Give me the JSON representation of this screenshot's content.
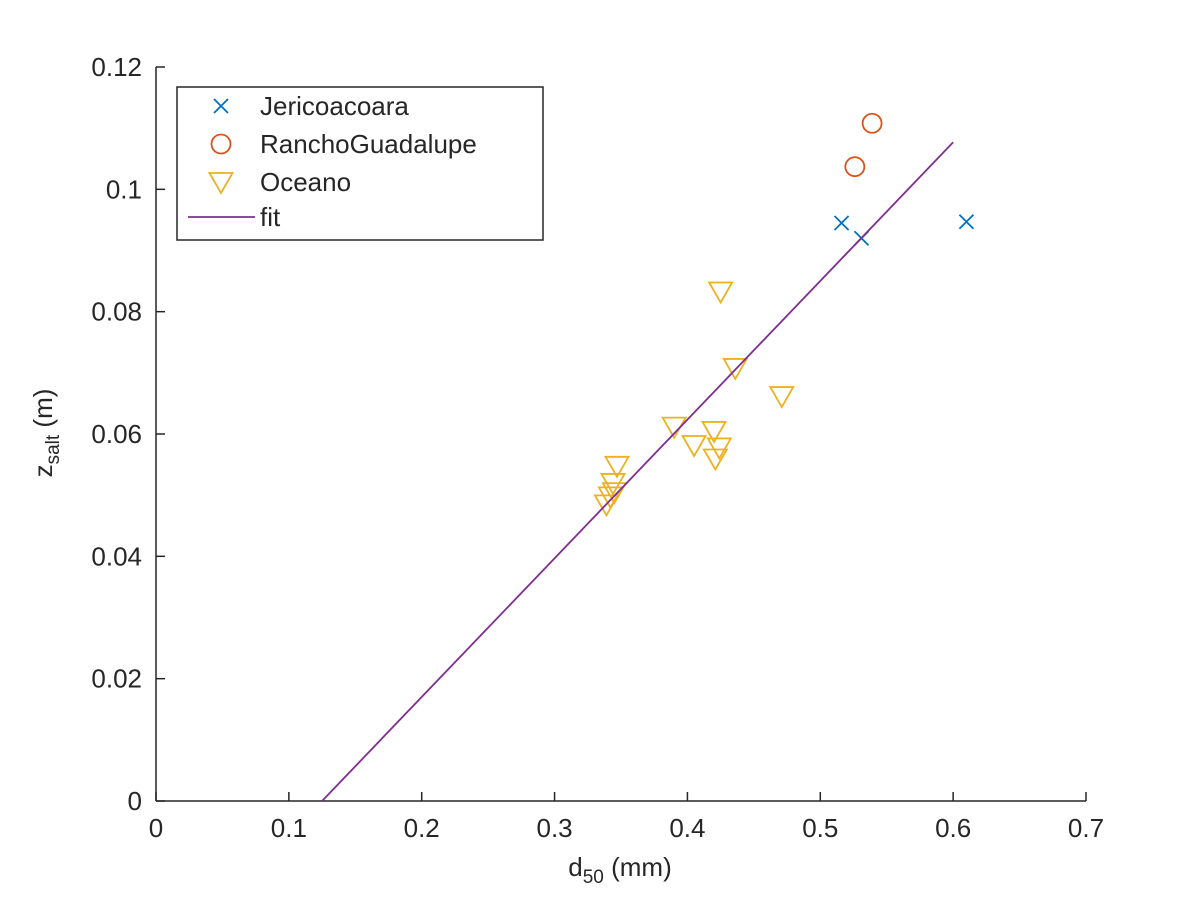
{
  "chart_data": {
    "type": "scatter",
    "title": "",
    "xlabel": {
      "main": "d",
      "sub": "50",
      "rest": " (mm)"
    },
    "ylabel": {
      "main": "z",
      "sub": "salt",
      "rest": " (m)"
    },
    "xlim": [
      0,
      0.7
    ],
    "ylim": [
      0,
      0.12
    ],
    "xticks": [
      0,
      0.1,
      0.2,
      0.3,
      0.4,
      0.5,
      0.6,
      0.7
    ],
    "xtick_labels": [
      "0",
      "0.1",
      "0.2",
      "0.3",
      "0.4",
      "0.5",
      "0.6",
      "0.7"
    ],
    "yticks": [
      0,
      0.02,
      0.04,
      0.06,
      0.08,
      0.1,
      0.12
    ],
    "ytick_labels": [
      "0",
      "0.02",
      "0.04",
      "0.06",
      "0.08",
      "0.1",
      "0.12"
    ],
    "grid": false,
    "legend_position": "top-left",
    "series": [
      {
        "name": "Jericoacoara",
        "marker": "x",
        "color": "#0072BD",
        "points": [
          {
            "x": 0.516,
            "y": 0.0945
          },
          {
            "x": 0.531,
            "y": 0.092
          },
          {
            "x": 0.61,
            "y": 0.0947
          }
        ]
      },
      {
        "name": "RanchoGuadalupe",
        "marker": "circle",
        "color": "#D95319",
        "points": [
          {
            "x": 0.526,
            "y": 0.1037
          },
          {
            "x": 0.539,
            "y": 0.1108
          }
        ]
      },
      {
        "name": "Oceano",
        "marker": "triangle-down",
        "color": "#EDB120",
        "points": [
          {
            "x": 0.339,
            "y": 0.0485
          },
          {
            "x": 0.342,
            "y": 0.0498
          },
          {
            "x": 0.345,
            "y": 0.0505
          },
          {
            "x": 0.344,
            "y": 0.052
          },
          {
            "x": 0.347,
            "y": 0.0548
          },
          {
            "x": 0.39,
            "y": 0.0612
          },
          {
            "x": 0.405,
            "y": 0.0582
          },
          {
            "x": 0.42,
            "y": 0.0605
          },
          {
            "x": 0.424,
            "y": 0.0578
          },
          {
            "x": 0.421,
            "y": 0.056
          },
          {
            "x": 0.425,
            "y": 0.0833
          },
          {
            "x": 0.436,
            "y": 0.0708
          },
          {
            "x": 0.471,
            "y": 0.0662
          }
        ]
      },
      {
        "name": "fit",
        "marker": "line",
        "color": "#7E2F8E",
        "points": [
          {
            "x": 0.125,
            "y": 0.0
          },
          {
            "x": 0.6,
            "y": 0.1077
          }
        ]
      }
    ]
  }
}
